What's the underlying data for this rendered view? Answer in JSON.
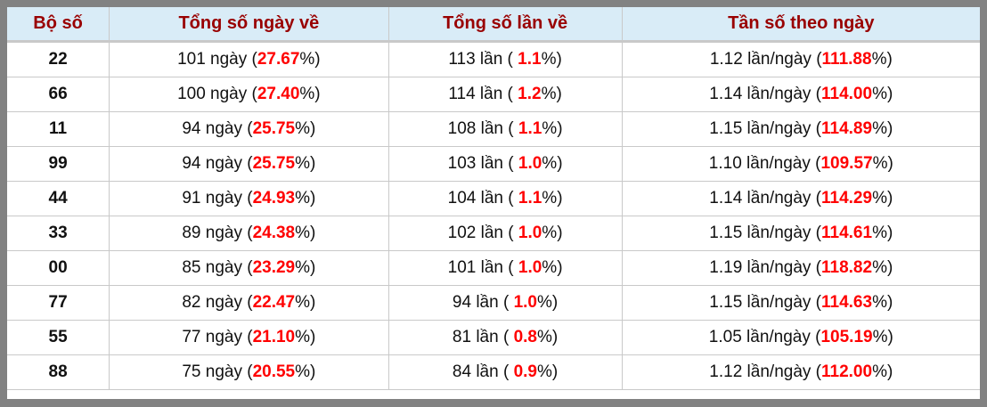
{
  "colors": {
    "header_bg": "#d9ecf7",
    "header_text": "#990000",
    "highlight_red": "#ff0000",
    "body_text": "#111111",
    "outer_border": "#828282",
    "grid_line": "#c9c9c9"
  },
  "table": {
    "columns": [
      {
        "label": "Bộ số"
      },
      {
        "label": "Tổng số ngày về"
      },
      {
        "label": "Tổng số lần về"
      },
      {
        "label": "Tần số theo ngày"
      }
    ],
    "rows": [
      {
        "pair": "22",
        "days_prefix": "101 ngày (",
        "days_value": "27.67",
        "days_suffix": "%)",
        "times_prefix": "113 lần ( ",
        "times_value": "1.1",
        "times_suffix": "%)",
        "freq_prefix": "1.12 lần/ngày (",
        "freq_value": "111.88",
        "freq_suffix": "%)"
      },
      {
        "pair": "66",
        "days_prefix": "100 ngày (",
        "days_value": "27.40",
        "days_suffix": "%)",
        "times_prefix": "114 lần ( ",
        "times_value": "1.2",
        "times_suffix": "%)",
        "freq_prefix": "1.14 lần/ngày (",
        "freq_value": "114.00",
        "freq_suffix": "%)"
      },
      {
        "pair": "11",
        "days_prefix": "94 ngày (",
        "days_value": "25.75",
        "days_suffix": "%)",
        "times_prefix": "108 lần ( ",
        "times_value": "1.1",
        "times_suffix": "%)",
        "freq_prefix": "1.15 lần/ngày (",
        "freq_value": "114.89",
        "freq_suffix": "%)"
      },
      {
        "pair": "99",
        "days_prefix": "94 ngày (",
        "days_value": "25.75",
        "days_suffix": "%)",
        "times_prefix": "103 lần ( ",
        "times_value": "1.0",
        "times_suffix": "%)",
        "freq_prefix": "1.10 lần/ngày (",
        "freq_value": "109.57",
        "freq_suffix": "%)"
      },
      {
        "pair": "44",
        "days_prefix": "91 ngày (",
        "days_value": "24.93",
        "days_suffix": "%)",
        "times_prefix": "104 lần ( ",
        "times_value": "1.1",
        "times_suffix": "%)",
        "freq_prefix": "1.14 lần/ngày (",
        "freq_value": "114.29",
        "freq_suffix": "%)"
      },
      {
        "pair": "33",
        "days_prefix": "89 ngày (",
        "days_value": "24.38",
        "days_suffix": "%)",
        "times_prefix": "102 lần ( ",
        "times_value": "1.0",
        "times_suffix": "%)",
        "freq_prefix": "1.15 lần/ngày (",
        "freq_value": "114.61",
        "freq_suffix": "%)"
      },
      {
        "pair": "00",
        "days_prefix": "85 ngày (",
        "days_value": "23.29",
        "days_suffix": "%)",
        "times_prefix": "101 lần ( ",
        "times_value": "1.0",
        "times_suffix": "%)",
        "freq_prefix": "1.19 lần/ngày (",
        "freq_value": "118.82",
        "freq_suffix": "%)"
      },
      {
        "pair": "77",
        "days_prefix": "82 ngày (",
        "days_value": "22.47",
        "days_suffix": "%)",
        "times_prefix": "94 lần ( ",
        "times_value": "1.0",
        "times_suffix": "%)",
        "freq_prefix": "1.15 lần/ngày (",
        "freq_value": "114.63",
        "freq_suffix": "%)"
      },
      {
        "pair": "55",
        "days_prefix": "77 ngày (",
        "days_value": "21.10",
        "days_suffix": "%)",
        "times_prefix": "81 lần ( ",
        "times_value": "0.8",
        "times_suffix": "%)",
        "freq_prefix": "1.05 lần/ngày (",
        "freq_value": "105.19",
        "freq_suffix": "%)"
      },
      {
        "pair": "88",
        "days_prefix": "75 ngày (",
        "days_value": "20.55",
        "days_suffix": "%)",
        "times_prefix": "84 lần ( ",
        "times_value": "0.9",
        "times_suffix": "%)",
        "freq_prefix": "1.12 lần/ngày (",
        "freq_value": "112.00",
        "freq_suffix": "%)"
      }
    ]
  }
}
